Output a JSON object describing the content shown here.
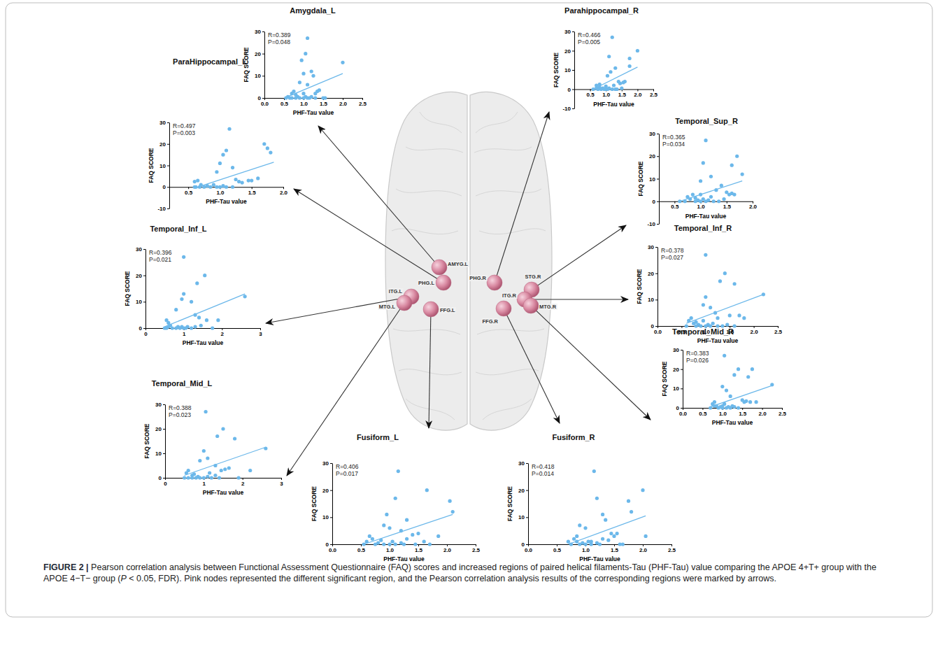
{
  "chart_data": [
    {
      "type": "scatter",
      "title": "Amygdala_L",
      "xlabel": "PHF-Tau value",
      "ylabel": "FAQ SCORE",
      "annotations": [
        "R=0.389",
        "P=0.048"
      ],
      "color": "#6cb8ea",
      "xlim": [
        0,
        2.5
      ],
      "ylim": [
        0,
        30
      ],
      "xticks": [
        {
          "value": 0,
          "label": "0.0"
        },
        0.5,
        {
          "value": 1,
          "label": "1.0"
        },
        1.5,
        {
          "value": 2,
          "label": "2.0"
        },
        2.5
      ],
      "yticks": [
        0,
        10,
        20,
        30
      ],
      "x": [
        1.1,
        1.05,
        0.95,
        1.2,
        1.0,
        1.25,
        2.0,
        0.9,
        1.1,
        1.35,
        1.4,
        1.3,
        0.7,
        0.8,
        0.6,
        0.55,
        0.65,
        0.7,
        0.8,
        0.85,
        0.9,
        1.0,
        1.05,
        1.1,
        1.15,
        1.2,
        1.3,
        1.5,
        1.55,
        0.75,
        1.0
      ],
      "values": [
        27,
        20,
        17,
        12,
        11,
        10,
        16,
        7,
        6,
        3,
        3.5,
        2,
        2,
        1.5,
        0.5,
        0,
        0,
        0,
        0,
        0.5,
        0,
        0,
        0.5,
        0,
        0,
        0.5,
        0,
        0,
        0,
        3,
        2
      ],
      "trend": {
        "x": [
          0.55,
          2.0
        ],
        "values": [
          0.3,
          11
        ]
      }
    },
    {
      "type": "scatter",
      "title": "ParaHippocampal_L",
      "xlabel": "PHF-Tau value",
      "ylabel": "FAQ SCORE",
      "annotations": [
        "R=0.497",
        "P=0.003"
      ],
      "color": "#6cb8ea",
      "xlim": [
        0.2,
        2.0
      ],
      "ylim": [
        -10,
        30
      ],
      "xticks": [
        0.5,
        {
          "value": 1,
          "label": "1.0"
        },
        1.5,
        {
          "value": 2,
          "label": "2.0"
        }
      ],
      "yticks": [
        -10,
        0,
        10,
        20,
        30
      ],
      "x": [
        1.15,
        1.1,
        1.05,
        1.0,
        0.95,
        1.2,
        1.25,
        1.3,
        1.35,
        1.7,
        1.8,
        1.75,
        1.45,
        1.5,
        1.6,
        0.6,
        0.65,
        0.7,
        0.6,
        0.62,
        0.68,
        0.75,
        0.8,
        0.85,
        0.9,
        0.95,
        1.0,
        1.05,
        1.1,
        1.2
      ],
      "values": [
        27,
        17,
        15,
        11,
        7,
        9,
        3.5,
        2.5,
        2,
        20,
        16,
        18,
        3,
        3,
        4,
        2.5,
        3,
        1,
        0,
        0,
        0,
        0,
        0.5,
        0,
        1,
        0,
        0,
        0.5,
        0,
        0
      ],
      "trend": {
        "x": [
          0.6,
          1.85
        ],
        "values": [
          -0.5,
          11.5
        ]
      }
    },
    {
      "type": "scatter",
      "title": "Temporal_Inf_L",
      "xlabel": "PHF-Tau value",
      "ylabel": "FAQ SCORE",
      "annotations": [
        "R=0.396",
        "P=0.021"
      ],
      "color": "#6cb8ea",
      "xlim": [
        0,
        3
      ],
      "ylim": [
        0,
        30
      ],
      "xticks": [
        0,
        1,
        2,
        3
      ],
      "yticks": [
        0,
        10,
        20,
        30
      ],
      "x": [
        1.0,
        1.55,
        1.35,
        1.0,
        2.6,
        0.95,
        1.2,
        0.8,
        1.9,
        1.3,
        1.4,
        0.55,
        0.6,
        0.65,
        0.5,
        0.55,
        0.6,
        0.7,
        0.8,
        0.85,
        0.9,
        0.95,
        1.0,
        1.05,
        1.1,
        1.2,
        1.3,
        1.45,
        1.6,
        1.75
      ],
      "values": [
        27,
        20,
        17,
        13,
        12,
        11,
        10,
        7,
        3,
        5,
        4,
        3,
        2,
        1,
        0,
        0,
        0.5,
        0,
        0,
        0.5,
        0,
        0.5,
        0,
        0,
        0.5,
        0,
        0.5,
        1,
        3,
        0
      ],
      "trend": {
        "x": [
          0.5,
          2.6
        ],
        "values": [
          0.5,
          13
        ]
      }
    },
    {
      "type": "scatter",
      "title": "Temporal_Mid_L",
      "xlabel": "PHF-Tau value",
      "ylabel": "FAQ SCORE",
      "annotations": [
        "R=0.388",
        "P=0.023"
      ],
      "color": "#6cb8ea",
      "xlim": [
        0,
        3
      ],
      "ylim": [
        0,
        30
      ],
      "xticks": [
        0,
        1,
        2,
        3
      ],
      "yticks": [
        0,
        10,
        20,
        30
      ],
      "x": [
        1.05,
        1.5,
        1.35,
        1.8,
        1.0,
        2.6,
        1.1,
        0.9,
        1.3,
        1.45,
        1.55,
        2.2,
        1.65,
        0.55,
        0.6,
        0.7,
        0.5,
        0.6,
        0.7,
        0.8,
        0.85,
        0.9,
        1.0,
        1.1,
        1.2,
        1.3,
        1.4,
        1.9,
        0.75,
        1.15
      ],
      "values": [
        27,
        20,
        17,
        16,
        11,
        12,
        8,
        7,
        5,
        3,
        3.5,
        3,
        4,
        2,
        3,
        1,
        0,
        0,
        0,
        0,
        0.5,
        0,
        0,
        0.5,
        0,
        1,
        0,
        0,
        1.5,
        2
      ],
      "trend": {
        "x": [
          0.5,
          2.6
        ],
        "values": [
          1,
          12.5
        ]
      }
    },
    {
      "type": "scatter",
      "title": "Fusiform_L",
      "xlabel": "PHF-Tau value",
      "ylabel": "FAQ SCORE",
      "annotations": [
        "R=0.406",
        "P=0.017"
      ],
      "color": "#6cb8ea",
      "xlim": [
        0,
        2.5
      ],
      "ylim": [
        0,
        30
      ],
      "xticks": [
        {
          "value": 0,
          "label": "0.0"
        },
        0.5,
        {
          "value": 1,
          "label": "1.0"
        },
        1.5,
        {
          "value": 2,
          "label": "2.0"
        },
        2.5
      ],
      "yticks": [
        0,
        10,
        20,
        30
      ],
      "x": [
        1.15,
        1.1,
        1.65,
        2.05,
        2.1,
        1.3,
        0.95,
        0.9,
        1.0,
        1.2,
        1.5,
        1.4,
        1.85,
        1.6,
        0.55,
        0.6,
        0.65,
        0.7,
        0.75,
        0.8,
        0.9,
        1.0,
        1.05,
        1.1,
        1.2,
        1.25,
        1.3,
        1.45,
        1.7,
        0.85
      ],
      "values": [
        27,
        17,
        20,
        16,
        12,
        9,
        11,
        7,
        6,
        5,
        4,
        3.5,
        3,
        1,
        0,
        1,
        3,
        2,
        0,
        0.5,
        0,
        0,
        1,
        0,
        0.5,
        0,
        2,
        0,
        0,
        1.5
      ],
      "trend": {
        "x": [
          0.55,
          2.1
        ],
        "values": [
          0,
          11
        ]
      }
    },
    {
      "type": "scatter",
      "title": "Parahippocampal_R",
      "xlabel": "PHF-Tau value",
      "ylabel": "FAQ SCORE",
      "annotations": [
        "R=0.466",
        "P=0.005"
      ],
      "color": "#6cb8ea",
      "xlim": [
        0,
        2.5
      ],
      "ylim": [
        -10,
        30
      ],
      "xticks": [
        0.5,
        {
          "value": 1,
          "label": "1.0"
        },
        1.5,
        {
          "value": 2,
          "label": "2.0"
        },
        2.5
      ],
      "yticks": [
        -10,
        0,
        10,
        20,
        30
      ],
      "x": [
        1.2,
        1.1,
        1.75,
        2.0,
        1.75,
        1.3,
        1.15,
        1.05,
        1.4,
        1.45,
        1.55,
        1.6,
        0.6,
        0.7,
        0.8,
        0.75,
        0.85,
        0.9,
        0.95,
        1.0,
        1.05,
        1.1,
        1.2,
        1.25,
        1.35,
        0.7,
        0.8,
        1.0,
        1.5,
        1.3
      ],
      "values": [
        27,
        17,
        16,
        20,
        12,
        11,
        9,
        7,
        4,
        3,
        3.5,
        4,
        0,
        2,
        1,
        0,
        0,
        0.5,
        0,
        0,
        0,
        0.5,
        0,
        2,
        0,
        0.5,
        2.5,
        1.5,
        0.5,
        0
      ],
      "trend": {
        "x": [
          0.6,
          2.0
        ],
        "values": [
          0,
          11.5
        ]
      }
    },
    {
      "type": "scatter",
      "title": "Temporal_Sup_R",
      "xlabel": "PHF-Tau value",
      "ylabel": "FAQ SCORE",
      "annotations": [
        "R=0.365",
        "P=0.034"
      ],
      "color": "#6cb8ea",
      "xlim": [
        0.2,
        2.0
      ],
      "ylim": [
        -10,
        30
      ],
      "xticks": [
        0.5,
        {
          "value": 1,
          "label": "1.0"
        },
        1.5,
        {
          "value": 2,
          "label": "2.0"
        }
      ],
      "yticks": [
        -10,
        0,
        10,
        20,
        30
      ],
      "x": [
        1.1,
        1.05,
        1.2,
        1.0,
        1.7,
        1.8,
        1.6,
        1.4,
        1.5,
        1.55,
        1.65,
        1.3,
        0.6,
        0.8,
        0.85,
        0.75,
        0.9,
        0.95,
        1.0,
        1.05,
        1.1,
        1.15,
        1.2,
        1.25,
        1.35,
        0.7,
        0.9,
        1.45,
        1.0,
        1.6
      ],
      "values": [
        27,
        17,
        11,
        9,
        20,
        12,
        16,
        7,
        4,
        3,
        3,
        5,
        0,
        1,
        3,
        2,
        0,
        0.5,
        0,
        1,
        0,
        0.5,
        2,
        0,
        0,
        0,
        1.5,
        1,
        3,
        3.5
      ],
      "trend": {
        "x": [
          0.6,
          1.8
        ],
        "values": [
          0,
          9
        ]
      }
    },
    {
      "type": "scatter",
      "title": "Temporal_Inf_R",
      "xlabel": "PHF-Tau value",
      "ylabel": "FAQ SCORE",
      "annotations": [
        "R=0.378",
        "P=0.027"
      ],
      "color": "#6cb8ea",
      "xlim": [
        0,
        2.5
      ],
      "ylim": [
        0,
        30
      ],
      "xticks": [
        {
          "value": 0,
          "label": "0.0"
        },
        0.5,
        {
          "value": 1,
          "label": "1.0"
        },
        1.5,
        {
          "value": 2,
          "label": "2.0"
        },
        2.5
      ],
      "yticks": [
        0,
        10,
        20,
        30
      ],
      "x": [
        1.0,
        1.4,
        1.3,
        1.6,
        1.0,
        2.2,
        0.95,
        1.1,
        1.2,
        1.7,
        1.8,
        1.5,
        1.25,
        0.6,
        0.65,
        0.7,
        0.75,
        0.8,
        0.85,
        0.9,
        0.95,
        1.0,
        1.05,
        1.1,
        1.15,
        1.25,
        1.35,
        0.8,
        1.45,
        1.6
      ],
      "values": [
        27,
        20,
        17,
        16,
        11,
        12,
        8,
        7,
        5,
        4,
        3,
        4,
        3,
        0,
        2,
        3,
        1,
        0,
        0.5,
        0,
        2,
        0,
        0.5,
        0,
        1,
        0,
        0,
        1.5,
        0.5,
        0
      ],
      "trend": {
        "x": [
          0.6,
          2.2
        ],
        "values": [
          1,
          12
        ]
      }
    },
    {
      "type": "scatter",
      "title": "Temporal_Mid_R",
      "xlabel": "PHF-Tau value",
      "ylabel": "FAQ SCORE",
      "annotations": [
        "R=0.383",
        "P=0.026"
      ],
      "color": "#6cb8ea",
      "xlim": [
        0,
        2.5
      ],
      "ylim": [
        0,
        30
      ],
      "xticks": [
        {
          "value": 0,
          "label": "0.0"
        },
        0.5,
        {
          "value": 1,
          "label": "1.0"
        },
        1.5,
        {
          "value": 2,
          "label": "2.0"
        },
        2.5
      ],
      "yticks": [
        0,
        10,
        20,
        30
      ],
      "x": [
        1.05,
        1.4,
        1.3,
        1.65,
        1.75,
        1.0,
        2.25,
        1.1,
        1.2,
        1.85,
        1.5,
        1.55,
        1.6,
        0.7,
        0.75,
        0.8,
        0.85,
        0.9,
        0.95,
        1.0,
        1.05,
        1.1,
        1.15,
        1.2,
        1.25,
        1.4,
        0.8,
        1.3,
        1.0,
        1.7
      ],
      "values": [
        27,
        20,
        17,
        16,
        20,
        11,
        12,
        9,
        6,
        3,
        4,
        3,
        3.5,
        0,
        2,
        3,
        1,
        0,
        0.5,
        0,
        2,
        0,
        0.5,
        0,
        1,
        0,
        1,
        0.5,
        1,
        3
      ],
      "trend": {
        "x": [
          0.7,
          2.25
        ],
        "values": [
          0.5,
          11.5
        ]
      }
    },
    {
      "type": "scatter",
      "title": "Fusiform_R",
      "xlabel": "PHF-Tau value",
      "ylabel": "FAQ SCORE",
      "annotations": [
        "R=0.418",
        "P=0.014"
      ],
      "color": "#6cb8ea",
      "xlim": [
        0,
        2.5
      ],
      "ylim": [
        0,
        30
      ],
      "xticks": [
        {
          "value": 0,
          "label": "0.0"
        },
        0.5,
        {
          "value": 1,
          "label": "1.0"
        },
        1.5,
        {
          "value": 2,
          "label": "2.0"
        },
        2.5
      ],
      "yticks": [
        0,
        10,
        20,
        30
      ],
      "x": [
        1.15,
        1.2,
        1.75,
        2.0,
        1.8,
        1.3,
        1.35,
        0.9,
        1.0,
        1.45,
        1.5,
        1.55,
        2.05,
        0.75,
        0.8,
        0.85,
        0.9,
        0.95,
        1.0,
        1.05,
        1.1,
        1.2,
        1.25,
        1.3,
        1.6,
        0.7,
        1.4,
        0.85,
        1.1,
        1.65
      ],
      "values": [
        27,
        17,
        16,
        20,
        12,
        11,
        9,
        7,
        6,
        4,
        3,
        4,
        3,
        0,
        2,
        1,
        0,
        0.5,
        0,
        1,
        0,
        0.5,
        0,
        2,
        0,
        1,
        1.5,
        3,
        1,
        0
      ],
      "trend": {
        "x": [
          0.7,
          2.05
        ],
        "values": [
          0,
          10.5
        ]
      }
    }
  ],
  "brain": {
    "nodes": [
      {
        "label": "AMYG.L"
      },
      {
        "label": "PHG.L"
      },
      {
        "label": "ITG.L"
      },
      {
        "label": "MTG.L"
      },
      {
        "label": "FFG.L"
      },
      {
        "label": "PHG.R"
      },
      {
        "label": "STG.R"
      },
      {
        "label": "ITG.R"
      },
      {
        "label": "MTG.R"
      },
      {
        "label": "FFG.R"
      }
    ]
  },
  "caption": {
    "runs": [
      {
        "text": "FIGURE 2 |",
        "bold": true
      },
      {
        "text": " Pearson correlation analysis between Functional Assessment Questionnaire (FAQ) scores and increased regions of paired helical filaments-Tau (PHF-Tau) value comparing the APOE 4+T+ group with the APOE 4−T− group ("
      },
      {
        "text": "P",
        "italic": true
      },
      {
        "text": " < 0.05, FDR). Pink nodes represented the different significant region, and the Pearson correlation analysis results of the corresponding regions were marked by arrows."
      }
    ]
  }
}
